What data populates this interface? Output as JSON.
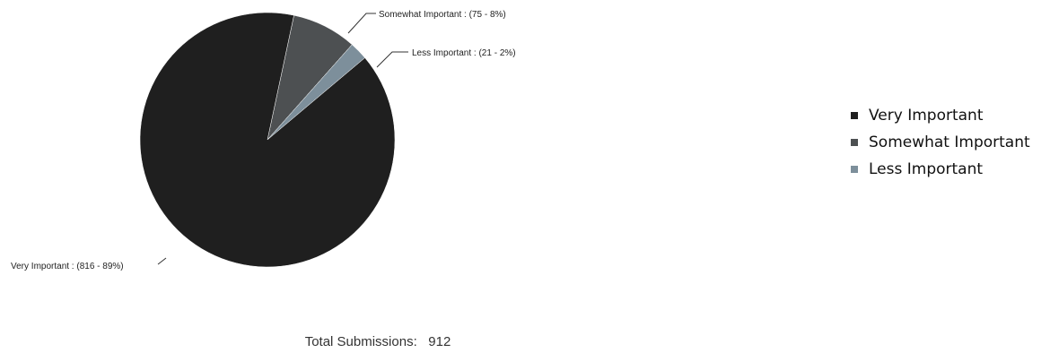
{
  "chart_data": {
    "type": "pie",
    "slices": [
      {
        "name": "Very Important",
        "value": 816,
        "percent": 89,
        "color": "#1f1f1f",
        "label": "Very Important : (816 - 89%)"
      },
      {
        "name": "Somewhat Important",
        "value": 75,
        "percent": 8,
        "color": "#4d5052",
        "label": "Somewhat Important : (75 - 8%)"
      },
      {
        "name": "Less Important",
        "value": 21,
        "percent": 2,
        "color": "#7d8f9b",
        "label": "Less Important : (21 - 2%)"
      }
    ],
    "legend": {
      "placement": "right",
      "items": [
        "Very Important",
        "Somewhat Important",
        "Less Important"
      ]
    }
  },
  "footer": {
    "total_label": "Total Submissions:",
    "total_value": "912"
  }
}
